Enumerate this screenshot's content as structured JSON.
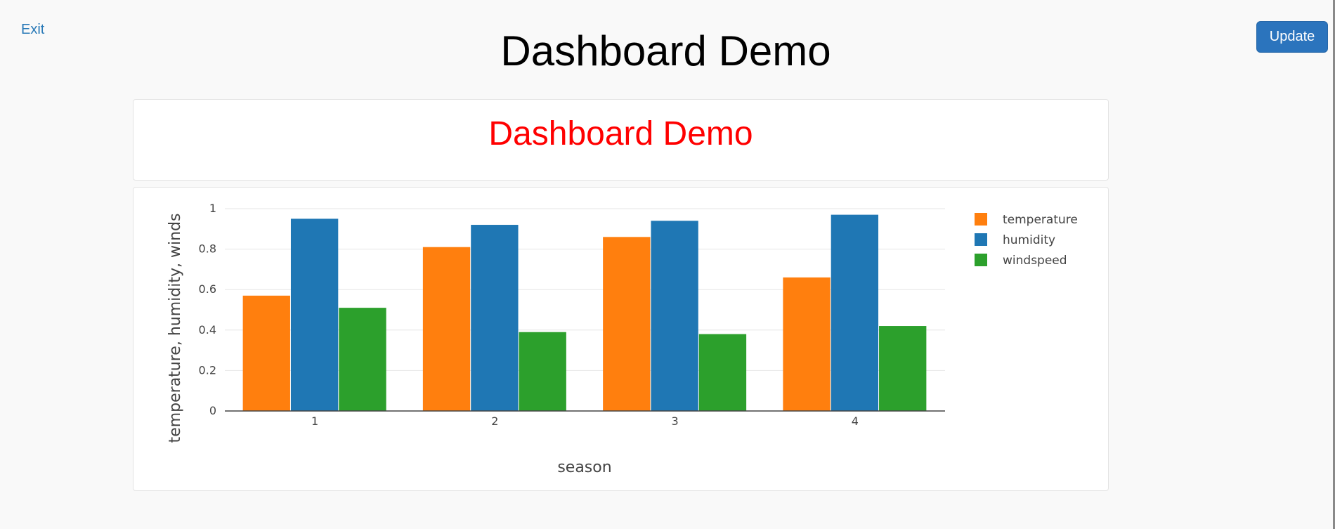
{
  "nav": {
    "exit_label": "Exit",
    "update_label": "Update"
  },
  "page": {
    "title": "Dashboard Demo"
  },
  "panel": {
    "heading": "Dashboard Demo"
  },
  "colors": {
    "temperature": "#ff7f0e",
    "humidity": "#1f77b4",
    "windspeed": "#2ca02c",
    "heading": "#ff0000",
    "button": "#2b74bd"
  },
  "chart_data": {
    "type": "bar",
    "categories": [
      "1",
      "2",
      "3",
      "4"
    ],
    "series": [
      {
        "name": "temperature",
        "values": [
          0.57,
          0.81,
          0.86,
          0.66
        ]
      },
      {
        "name": "humidity",
        "values": [
          0.95,
          0.92,
          0.94,
          0.97
        ]
      },
      {
        "name": "windspeed",
        "values": [
          0.51,
          0.39,
          0.38,
          0.42
        ]
      }
    ],
    "xlabel": "season",
    "ylabel": "temperature, humidity, winds",
    "ylim": [
      0,
      1
    ],
    "yticks": [
      "0",
      "0.2",
      "0.4",
      "0.6",
      "0.8",
      "1"
    ],
    "grid": true,
    "legend_position": "right"
  }
}
